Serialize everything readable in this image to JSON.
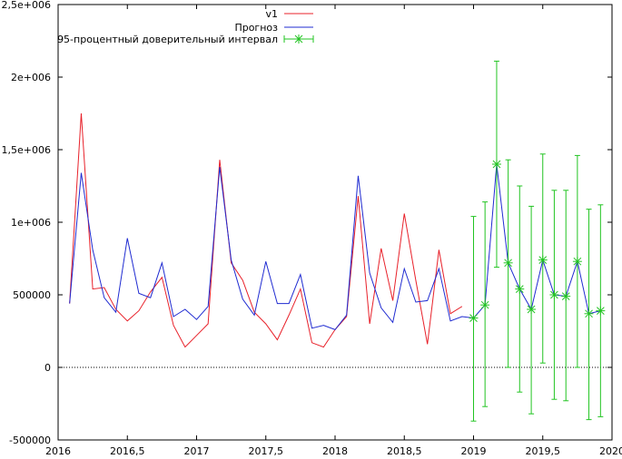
{
  "chart_data": {
    "type": "line",
    "xlim": [
      2016,
      2020
    ],
    "ylim": [
      -500000,
      2500000
    ],
    "x_ticks": [
      {
        "value": 2016,
        "label": "2016"
      },
      {
        "value": 2016.5,
        "label": "2016,5"
      },
      {
        "value": 2017,
        "label": "2017"
      },
      {
        "value": 2017.5,
        "label": "2017,5"
      },
      {
        "value": 2018,
        "label": "2018"
      },
      {
        "value": 2018.5,
        "label": "2018,5"
      },
      {
        "value": 2019,
        "label": "2019"
      },
      {
        "value": 2019.5,
        "label": "2019,5"
      },
      {
        "value": 2020,
        "label": "2020"
      }
    ],
    "y_ticks": [
      {
        "value": -500000,
        "label": "-500000"
      },
      {
        "value": 0,
        "label": "0"
      },
      {
        "value": 500000,
        "label": "500000"
      },
      {
        "value": 1000000,
        "label": "1e+006"
      },
      {
        "value": 1500000,
        "label": "1,5e+006"
      },
      {
        "value": 2000000,
        "label": "2e+006"
      },
      {
        "value": 2500000,
        "label": "2,5e+006"
      }
    ],
    "zero_line": true,
    "legend_position": "top-center",
    "series": [
      {
        "name": "v1",
        "color": "#e8212a",
        "style": "line",
        "x": [
          2016.083,
          2016.167,
          2016.25,
          2016.333,
          2016.417,
          2016.5,
          2016.583,
          2016.667,
          2016.75,
          2016.833,
          2016.917,
          2017.0,
          2017.083,
          2017.167,
          2017.25,
          2017.333,
          2017.417,
          2017.5,
          2017.583,
          2017.667,
          2017.75,
          2017.833,
          2017.917,
          2018.0,
          2018.083,
          2018.167,
          2018.25,
          2018.333,
          2018.417,
          2018.5,
          2018.583,
          2018.667,
          2018.75,
          2018.833,
          2018.917
        ],
        "y": [
          440000,
          1750000,
          540000,
          550000,
          400000,
          320000,
          390000,
          520000,
          620000,
          290000,
          140000,
          220000,
          300000,
          1430000,
          720000,
          600000,
          380000,
          300000,
          190000,
          360000,
          540000,
          170000,
          140000,
          260000,
          350000,
          1180000,
          300000,
          820000,
          460000,
          1060000,
          600000,
          160000,
          810000,
          370000,
          420000
        ]
      },
      {
        "name": "Прогноз",
        "color": "#1f2bd1",
        "style": "line",
        "x": [
          2016.083,
          2016.167,
          2016.25,
          2016.333,
          2016.417,
          2016.5,
          2016.583,
          2016.667,
          2016.75,
          2016.833,
          2016.917,
          2017.0,
          2017.083,
          2017.167,
          2017.25,
          2017.333,
          2017.417,
          2017.5,
          2017.583,
          2017.667,
          2017.75,
          2017.833,
          2017.917,
          2018.0,
          2018.083,
          2018.167,
          2018.25,
          2018.333,
          2018.417,
          2018.5,
          2018.583,
          2018.667,
          2018.75,
          2018.833,
          2018.917,
          2019.0,
          2019.083,
          2019.167,
          2019.25,
          2019.333,
          2019.417,
          2019.5,
          2019.583,
          2019.667,
          2019.75,
          2019.833,
          2019.917
        ],
        "y": [
          440000,
          1340000,
          810000,
          480000,
          380000,
          890000,
          510000,
          480000,
          720000,
          350000,
          400000,
          330000,
          420000,
          1380000,
          740000,
          470000,
          360000,
          730000,
          440000,
          440000,
          640000,
          270000,
          290000,
          260000,
          360000,
          1320000,
          650000,
          410000,
          310000,
          680000,
          450000,
          460000,
          680000,
          320000,
          350000,
          340000,
          430000,
          1400000,
          720000,
          540000,
          400000,
          740000,
          500000,
          490000,
          730000,
          370000,
          390000
        ]
      },
      {
        "name": "95-процентный доверительный интервал",
        "color": "#22c422",
        "style": "errorbar",
        "x": [
          2019.0,
          2019.083,
          2019.167,
          2019.25,
          2019.333,
          2019.417,
          2019.5,
          2019.583,
          2019.667,
          2019.75,
          2019.833,
          2019.917
        ],
        "y": [
          340000,
          430000,
          1400000,
          720000,
          540000,
          400000,
          740000,
          500000,
          490000,
          730000,
          370000,
          390000
        ],
        "low": [
          -370000,
          -270000,
          690000,
          0,
          -170000,
          -320000,
          30000,
          -220000,
          -230000,
          0,
          -360000,
          -340000
        ],
        "high": [
          1040000,
          1140000,
          2110000,
          1430000,
          1250000,
          1110000,
          1470000,
          1220000,
          1220000,
          1460000,
          1090000,
          1120000
        ]
      }
    ]
  }
}
